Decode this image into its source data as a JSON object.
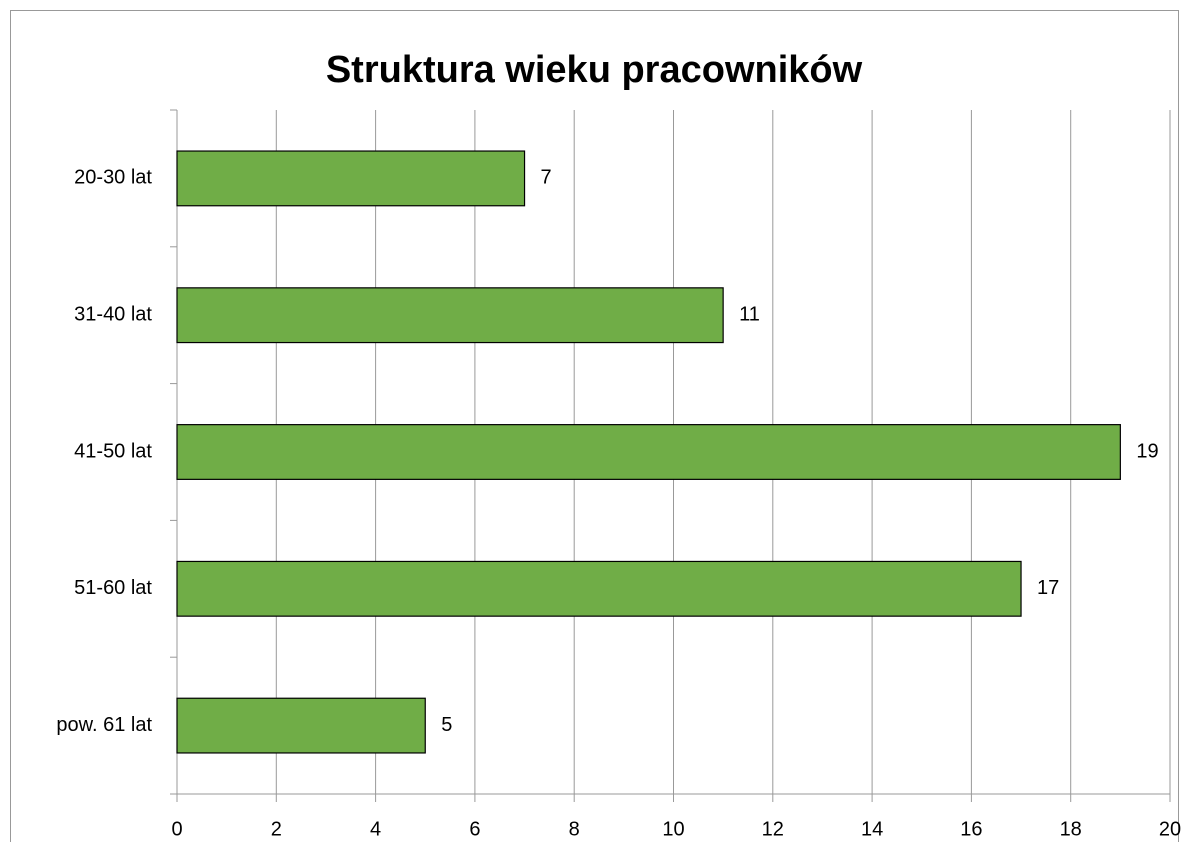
{
  "chart_data": {
    "type": "bar",
    "orientation": "horizontal",
    "title": "Struktura wieku pracowników",
    "categories": [
      "20-30 lat",
      "31-40 lat",
      "41-50 lat",
      "51-60 lat",
      "pow. 61 lat"
    ],
    "values": [
      7,
      11,
      19,
      17,
      5
    ],
    "color": "#70ad47",
    "xlim": [
      0,
      20
    ],
    "xticks": [
      0,
      2,
      4,
      6,
      8,
      10,
      12,
      14,
      16,
      18,
      20
    ],
    "grid": true,
    "data_labels": true
  }
}
